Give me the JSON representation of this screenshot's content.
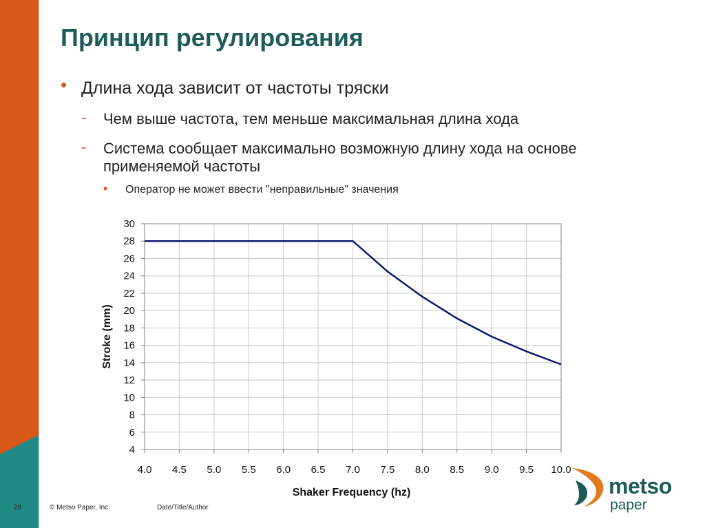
{
  "slide": {
    "title": "Принцип регулирования",
    "bullets": {
      "level1": "Длина хода зависит от частоты тряски",
      "level2": [
        "Чем выше частота, тем меньше максимальная длина хода",
        "Система сообщает максимально возможную длину хода на основе применяемой частоты"
      ],
      "level3": "Оператор не может ввести \"неправильные\" значения",
      "bullet_glyph": "•",
      "dash_glyph": "-"
    },
    "footer": {
      "page_number": "29",
      "copyright": "© Metso Paper, Inc.",
      "date_author": "Date/Title/Author"
    },
    "logo": {
      "brand": "metso",
      "sub": "paper",
      "icon": "metso-swirl-icon"
    },
    "colors": {
      "accent_orange": "#d8581a",
      "accent_teal": "#1f8a86",
      "title": "#1d5c5b",
      "line": "#0b1a6e"
    }
  },
  "chart_data": {
    "type": "line",
    "title": "",
    "xlabel": "Shaker Frequency (hz)",
    "ylabel": "Stroke (mm)",
    "xlim": [
      4.0,
      10.0
    ],
    "ylim": [
      4,
      30
    ],
    "x_ticks": [
      "4.0",
      "4.5",
      "5.0",
      "5.5",
      "6.0",
      "6.5",
      "7.0",
      "7.5",
      "8.0",
      "8.5",
      "9.0",
      "9.5",
      "10.0"
    ],
    "y_ticks": [
      "4",
      "6",
      "8",
      "10",
      "12",
      "14",
      "16",
      "18",
      "20",
      "22",
      "24",
      "26",
      "28",
      "30"
    ],
    "grid": true,
    "legend": "none",
    "series": [
      {
        "x": [
          4.0,
          4.5,
          5.0,
          5.5,
          6.0,
          6.5,
          7.0,
          7.5,
          8.0,
          8.5,
          9.0,
          9.5,
          10.0
        ],
        "y": [
          28,
          28,
          28,
          28,
          28,
          28,
          28,
          24.5,
          21.6,
          19.1,
          17.0,
          15.3,
          13.8
        ]
      }
    ]
  }
}
